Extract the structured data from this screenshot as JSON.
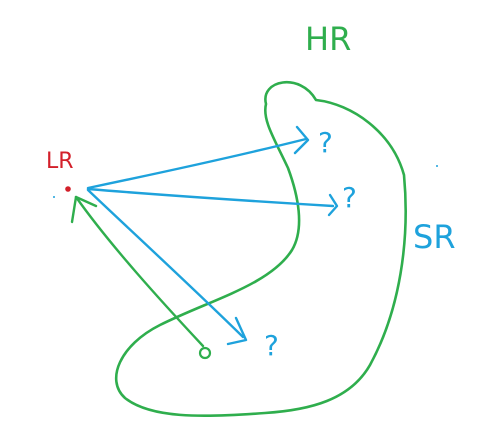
{
  "labels": {
    "lr": "LR",
    "hr": "HR",
    "sr": "SR",
    "question_1": "?",
    "question_2": "?",
    "question_3": "?"
  },
  "colors": {
    "green": "#2fae4d",
    "blue": "#1ea2dc",
    "red": "#d3202a",
    "background": "#ffffff"
  }
}
